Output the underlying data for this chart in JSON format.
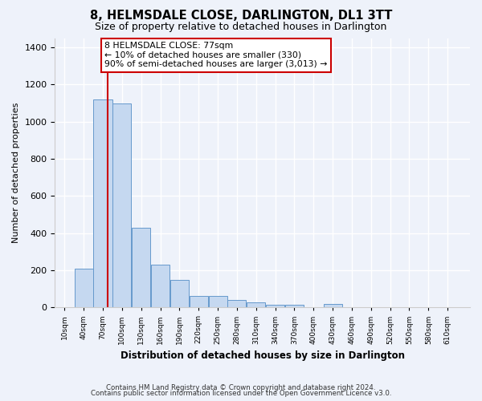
{
  "title": "8, HELMSDALE CLOSE, DARLINGTON, DL1 3TT",
  "subtitle": "Size of property relative to detached houses in Darlington",
  "xlabel": "Distribution of detached houses by size in Darlington",
  "ylabel": "Number of detached properties",
  "footer_line1": "Contains HM Land Registry data © Crown copyright and database right 2024.",
  "footer_line2": "Contains public sector information licensed under the Open Government Licence v3.0.",
  "categories": [
    "10sqm",
    "40sqm",
    "70sqm",
    "100sqm",
    "130sqm",
    "160sqm",
    "190sqm",
    "220sqm",
    "250sqm",
    "280sqm",
    "310sqm",
    "340sqm",
    "370sqm",
    "400sqm",
    "430sqm",
    "460sqm",
    "490sqm",
    "520sqm",
    "550sqm",
    "580sqm",
    "610sqm"
  ],
  "bin_starts": [
    10,
    40,
    70,
    100,
    130,
    160,
    190,
    220,
    250,
    280,
    310,
    340,
    370,
    400,
    430,
    460,
    490,
    520,
    550,
    580,
    610
  ],
  "bar_heights": [
    0,
    210,
    1120,
    1100,
    430,
    230,
    150,
    60,
    60,
    40,
    25,
    15,
    15,
    0,
    20,
    0,
    0,
    0,
    0,
    0,
    0
  ],
  "bar_color": "#c5d8f0",
  "bar_edge_color": "#6699cc",
  "vline_x": 77,
  "vline_color": "#cc0000",
  "annotation_text": "8 HELMSDALE CLOSE: 77sqm\n← 10% of detached houses are smaller (330)\n90% of semi-detached houses are larger (3,013) →",
  "annotation_box_edgecolor": "#cc0000",
  "ylim": [
    0,
    1450
  ],
  "xlim_left": -5,
  "xlim_right": 645,
  "background_color": "#eef2fa",
  "grid_color": "#ffffff",
  "bin_width": 30
}
